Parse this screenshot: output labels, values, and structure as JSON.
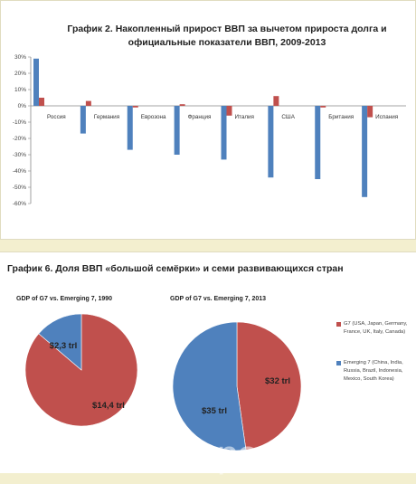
{
  "colors": {
    "blue": "#4f81bd",
    "red": "#c0504d"
  },
  "chart_data": [
    {
      "type": "bar",
      "title": "График 2. Накопленный прирост ВВП за вычетом прироста долга и официальные показатели ВВП, 2009-2013",
      "categories": [
        "Россия",
        "Германия",
        "Еврозона",
        "Франция",
        "Италия",
        "США",
        "Британия",
        "Испания"
      ],
      "series": [
        {
          "color": "#4f81bd",
          "values": [
            29,
            -17,
            -27,
            -30,
            -33,
            -44,
            -45,
            -56
          ]
        },
        {
          "color": "#c0504d",
          "values": [
            5,
            3,
            -1,
            1,
            -6,
            6,
            -1,
            -7
          ]
        }
      ],
      "ylim": [
        -60,
        30
      ],
      "ytick_labels": [
        "30%",
        "20%",
        "10%",
        "0%",
        "-10%",
        "-20%",
        "-30%",
        "-40%",
        "-50%",
        "-60%"
      ],
      "grid": false
    },
    {
      "type": "pie",
      "title": "GDP of G7 vs. Emerging 7, 1990",
      "labels": [
        "G7",
        "Emerging 7"
      ],
      "values": [
        14.4,
        2.3
      ],
      "colors": [
        "#c0504d",
        "#4f81bd"
      ],
      "data_labels": [
        "$14,4 trl",
        "$2,3 trl"
      ]
    },
    {
      "type": "pie",
      "title": "GDP of G7 vs. Emerging 7, 2013",
      "labels": [
        "G7",
        "Emerging 7"
      ],
      "values": [
        32,
        35
      ],
      "colors": [
        "#c0504d",
        "#4f81bd"
      ],
      "data_labels": [
        "$32 trl",
        "$35 trl"
      ]
    }
  ],
  "figure2": {
    "title": "График 6. Доля ВВП «большой семёрки» и семи развивающихся стран"
  },
  "legend": [
    {
      "color": "#c0504d",
      "text": "G7 (USA, Japan, Germany, France, UK, Italy, Canada)"
    },
    {
      "color": "#4f81bd",
      "text": "Emerging 7 (China, India, Russia, Brazil, Indonesia, Mexico, South Korea)"
    }
  ],
  "watermark": "postila.ru"
}
